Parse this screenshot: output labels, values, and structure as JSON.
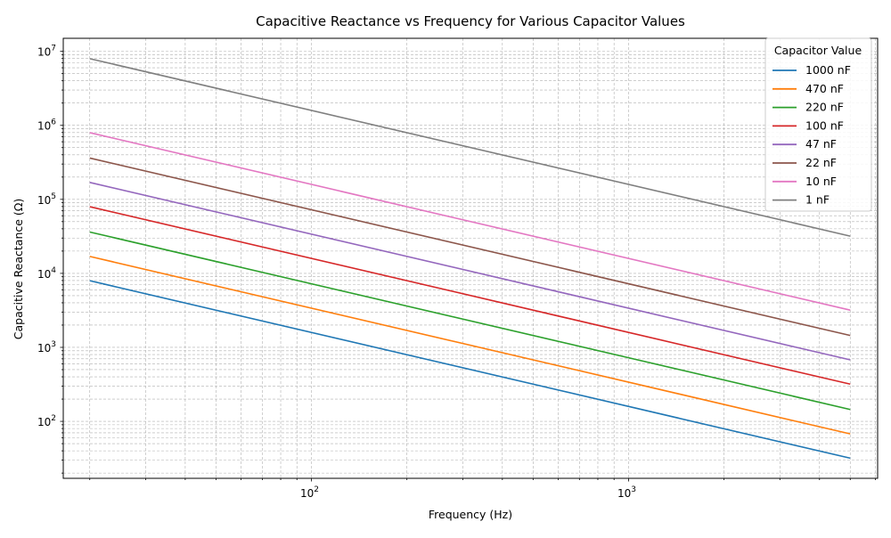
{
  "chart_data": {
    "type": "line",
    "title": "Capacitive Reactance vs Frequency for Various Capacitor Values",
    "xlabel": "Frequency (Hz)",
    "ylabel": "Capacitive Reactance (Ω)",
    "xscale": "log",
    "yscale": "log",
    "xlim": [
      16.5,
      6100
    ],
    "ylim": [
      17,
      15000000
    ],
    "grid": true,
    "legend": {
      "title": "Capacitor Value",
      "placement": "top-right"
    },
    "x": [
      20,
      5000
    ],
    "series": [
      {
        "name": "1000 nF",
        "color": "#1f77b4",
        "values": [
          7958,
          31.8
        ]
      },
      {
        "name": "470 nF",
        "color": "#ff7f0e",
        "values": [
          16931,
          67.7
        ]
      },
      {
        "name": "220 nF",
        "color": "#2ca02c",
        "values": [
          36172,
          144.7
        ]
      },
      {
        "name": "100 nF",
        "color": "#d62728",
        "values": [
          79577,
          318.3
        ]
      },
      {
        "name": "47 nF",
        "color": "#9467bd",
        "values": [
          169313,
          677.3
        ]
      },
      {
        "name": "22 nF",
        "color": "#8c564b",
        "values": [
          361716,
          1446.9
        ]
      },
      {
        "name": "10 nF",
        "color": "#e377c2",
        "values": [
          795775,
          3183.1
        ]
      },
      {
        "name": "1 nF",
        "color": "#7f7f7f",
        "values": [
          7957747,
          31831
        ]
      }
    ],
    "x_ticks": [
      {
        "value": 100,
        "base": "10",
        "exp": "2"
      },
      {
        "value": 1000,
        "base": "10",
        "exp": "3"
      }
    ],
    "y_ticks": [
      {
        "value": 100,
        "base": "10",
        "exp": "2"
      },
      {
        "value": 1000,
        "base": "10",
        "exp": "3"
      },
      {
        "value": 10000,
        "base": "10",
        "exp": "4"
      },
      {
        "value": 100000,
        "base": "10",
        "exp": "5"
      },
      {
        "value": 1000000,
        "base": "10",
        "exp": "6"
      },
      {
        "value": 10000000,
        "base": "10",
        "exp": "7"
      }
    ]
  }
}
